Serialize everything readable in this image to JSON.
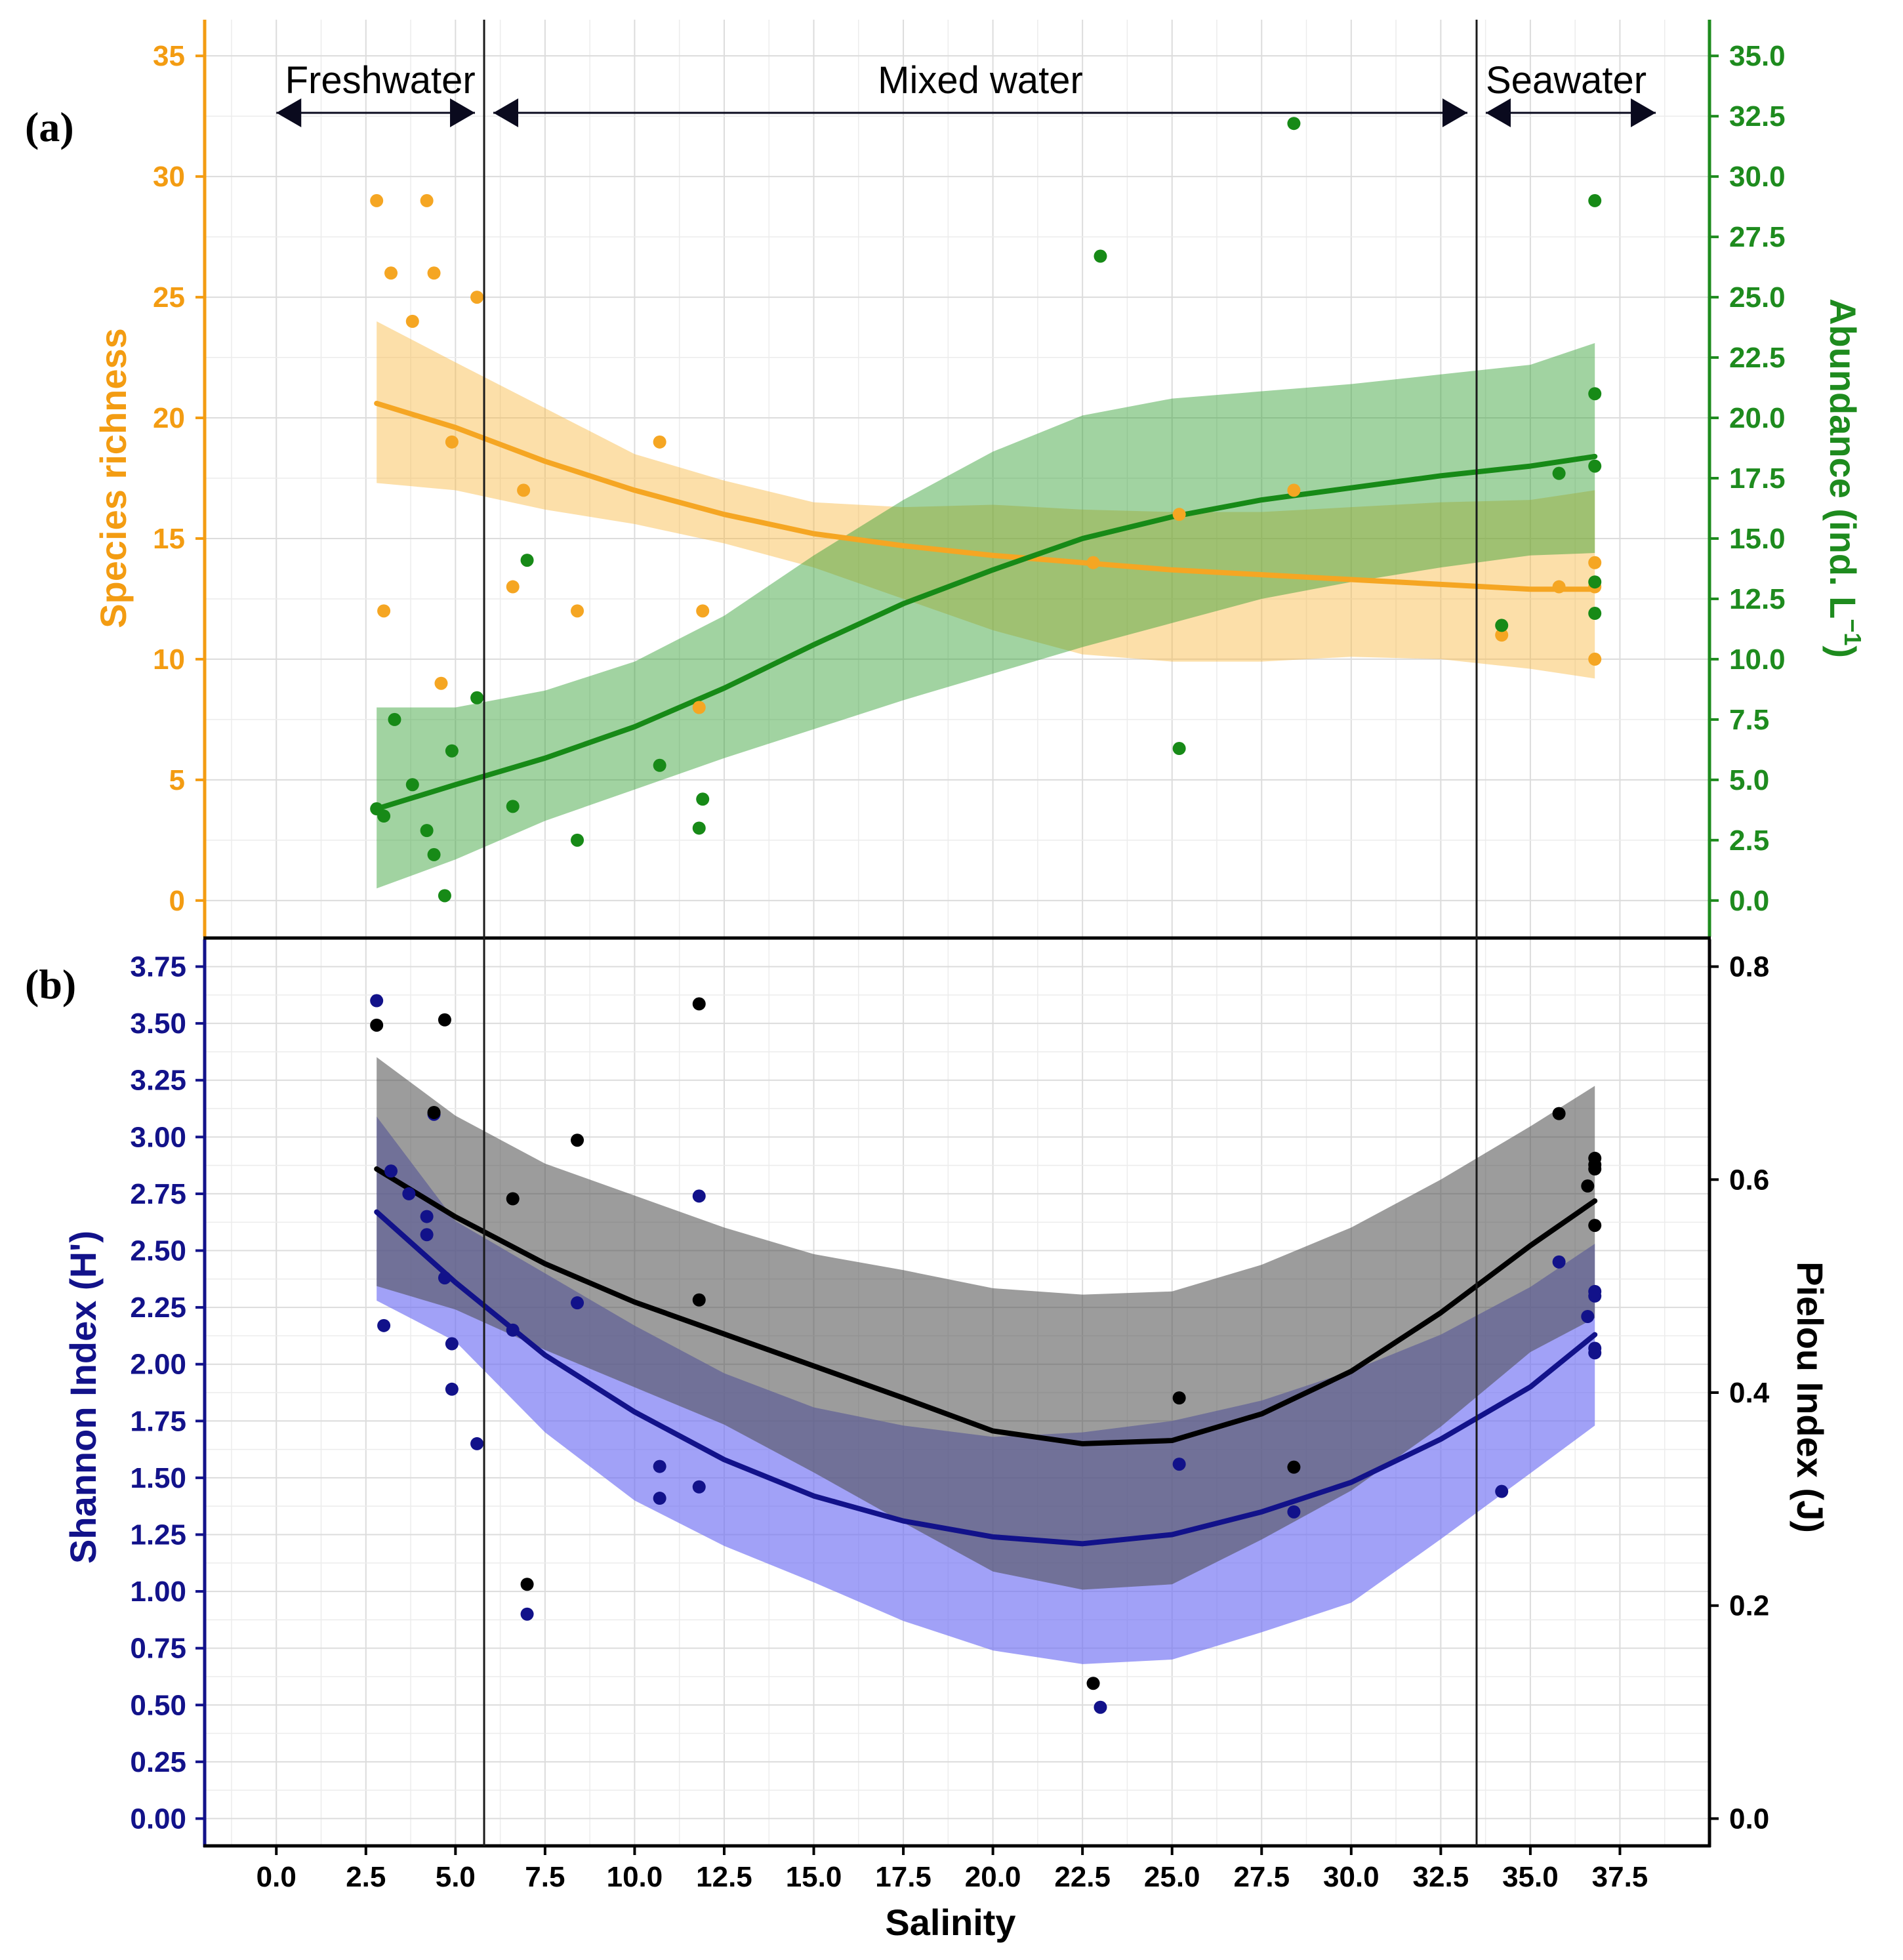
{
  "chart_data": [
    {
      "panel_label": "(a)",
      "type": "scatter",
      "xlim": [
        -2.0,
        40.0
      ],
      "x_ticks": [
        0.0,
        2.5,
        5.0,
        7.5,
        10.0,
        12.5,
        15.0,
        17.5,
        20.0,
        22.5,
        25.0,
        27.5,
        30.0,
        32.5,
        35.0,
        37.5
      ],
      "zone_boundaries": [
        5.8,
        33.5
      ],
      "zones": [
        {
          "label": "Freshwater",
          "from": 0.0,
          "to": 5.8
        },
        {
          "label": "Mixed water",
          "from": 5.8,
          "to": 33.5
        },
        {
          "label": "Seawater",
          "from": 33.5,
          "to": 38.5
        }
      ],
      "y_left": {
        "label": "Species richness",
        "ylim": [
          -1.5,
          36.5
        ],
        "ticks": [
          0,
          5,
          10,
          15,
          20,
          25,
          30,
          35
        ]
      },
      "y_right": {
        "label": "Abundance (ind. L",
        "label_sup": "−1",
        "label_end": ")",
        "ylim": [
          -1.5,
          36.5
        ],
        "ticks": [
          "0.0",
          "2.5",
          "5.0",
          "7.5",
          "10.0",
          "12.5",
          "15.0",
          "17.5",
          "20.0",
          "22.5",
          "25.0",
          "27.5",
          "30.0",
          "32.5",
          "35.0"
        ]
      },
      "series": [
        {
          "axis": "left",
          "color": "#F5A623",
          "points": [
            [
              2.8,
              29
            ],
            [
              3.0,
              12
            ],
            [
              3.2,
              26
            ],
            [
              3.8,
              24
            ],
            [
              4.2,
              29
            ],
            [
              4.4,
              26
            ],
            [
              4.6,
              9
            ],
            [
              4.9,
              19
            ],
            [
              5.6,
              25
            ],
            [
              6.6,
              13
            ],
            [
              6.9,
              17
            ],
            [
              8.4,
              12
            ],
            [
              10.7,
              19
            ],
            [
              11.8,
              8
            ],
            [
              11.9,
              12
            ],
            [
              22.8,
              14
            ],
            [
              25.2,
              16
            ],
            [
              28.4,
              17
            ],
            [
              34.2,
              11
            ],
            [
              35.8,
              13
            ],
            [
              36.8,
              14
            ],
            [
              36.8,
              13
            ],
            [
              36.8,
              10
            ]
          ],
          "fit": [
            [
              2.8,
              20.6
            ],
            [
              5.0,
              19.6
            ],
            [
              7.5,
              18.2
            ],
            [
              10.0,
              17.0
            ],
            [
              12.5,
              16.0
            ],
            [
              15.0,
              15.2
            ],
            [
              17.5,
              14.7
            ],
            [
              20.0,
              14.3
            ],
            [
              22.5,
              14.0
            ],
            [
              25.0,
              13.7
            ],
            [
              27.5,
              13.5
            ],
            [
              30.0,
              13.3
            ],
            [
              32.5,
              13.1
            ],
            [
              35.0,
              12.9
            ],
            [
              36.8,
              12.9
            ]
          ],
          "band": [
            [
              2.8,
              17.3,
              24.0
            ],
            [
              5.0,
              17.0,
              22.3
            ],
            [
              7.5,
              16.2,
              20.4
            ],
            [
              10.0,
              15.6,
              18.5
            ],
            [
              12.5,
              14.8,
              17.4
            ],
            [
              15.0,
              13.8,
              16.5
            ],
            [
              17.5,
              12.5,
              16.3
            ],
            [
              20.0,
              11.2,
              16.4
            ],
            [
              22.5,
              10.2,
              16.2
            ],
            [
              25.0,
              9.9,
              16.1
            ],
            [
              27.5,
              9.9,
              16.1
            ],
            [
              30.0,
              10.1,
              16.3
            ],
            [
              32.5,
              10.0,
              16.5
            ],
            [
              35.0,
              9.6,
              16.6
            ],
            [
              36.8,
              9.2,
              17.0
            ]
          ]
        },
        {
          "axis": "right",
          "color": "#178A17",
          "points": [
            [
              2.8,
              3.8
            ],
            [
              3.0,
              3.5
            ],
            [
              3.3,
              7.5
            ],
            [
              3.8,
              4.8
            ],
            [
              4.2,
              2.9
            ],
            [
              4.4,
              1.9
            ],
            [
              4.7,
              0.2
            ],
            [
              4.9,
              6.2
            ],
            [
              5.6,
              8.4
            ],
            [
              6.6,
              3.9
            ],
            [
              7.0,
              14.1
            ],
            [
              8.4,
              2.5
            ],
            [
              10.7,
              5.6
            ],
            [
              11.8,
              3.0
            ],
            [
              11.9,
              4.2
            ],
            [
              23.0,
              26.7
            ],
            [
              25.2,
              6.3
            ],
            [
              28.4,
              32.2
            ],
            [
              34.2,
              11.4
            ],
            [
              35.8,
              17.7
            ],
            [
              36.8,
              29.0
            ],
            [
              36.8,
              21.0
            ],
            [
              36.8,
              18.0
            ],
            [
              36.8,
              13.2
            ],
            [
              36.8,
              11.9
            ]
          ],
          "fit": [
            [
              2.8,
              3.8
            ],
            [
              5.0,
              4.8
            ],
            [
              7.5,
              5.9
            ],
            [
              10.0,
              7.2
            ],
            [
              12.5,
              8.8
            ],
            [
              15.0,
              10.6
            ],
            [
              17.5,
              12.3
            ],
            [
              20.0,
              13.7
            ],
            [
              22.5,
              15.0
            ],
            [
              25.0,
              15.9
            ],
            [
              27.5,
              16.6
            ],
            [
              30.0,
              17.1
            ],
            [
              32.5,
              17.6
            ],
            [
              35.0,
              18.0
            ],
            [
              36.8,
              18.4
            ]
          ],
          "band": [
            [
              2.8,
              0.5,
              8.0
            ],
            [
              5.0,
              1.7,
              8.0
            ],
            [
              7.5,
              3.3,
              8.7
            ],
            [
              10.0,
              4.6,
              9.9
            ],
            [
              12.5,
              5.9,
              11.8
            ],
            [
              15.0,
              7.1,
              14.3
            ],
            [
              17.5,
              8.3,
              16.6
            ],
            [
              20.0,
              9.4,
              18.6
            ],
            [
              22.5,
              10.5,
              20.1
            ],
            [
              25.0,
              11.5,
              20.8
            ],
            [
              27.5,
              12.5,
              21.1
            ],
            [
              30.0,
              13.2,
              21.4
            ],
            [
              32.5,
              13.8,
              21.8
            ],
            [
              35.0,
              14.3,
              22.2
            ],
            [
              36.8,
              14.4,
              23.1
            ]
          ]
        }
      ]
    },
    {
      "panel_label": "(b)",
      "type": "scatter",
      "xlim": [
        -2.0,
        40.0
      ],
      "xlabel": "Salinity",
      "x_ticks": [
        "0.0",
        "2.5",
        "5.0",
        "7.5",
        "10.0",
        "12.5",
        "15.0",
        "17.5",
        "20.0",
        "22.5",
        "25.0",
        "27.5",
        "30.0",
        "32.5",
        "35.0",
        "37.5"
      ],
      "y_left": {
        "label": "Shannon Index (H')",
        "ylim": [
          -0.12,
          3.87
        ],
        "ticks": [
          "0.00",
          "0.25",
          "0.50",
          "0.75",
          "1.00",
          "1.25",
          "1.50",
          "1.75",
          "2.00",
          "2.25",
          "2.50",
          "2.75",
          "3.00",
          "3.25",
          "3.50",
          "3.75"
        ]
      },
      "y_right": {
        "label": "Pielou Index (J)",
        "ylim": [
          -0.0256,
          0.8256
        ],
        "ticks": [
          "0.0",
          "0.2",
          "0.4",
          "0.6",
          "0.8"
        ]
      },
      "series": [
        {
          "axis": "left",
          "color": "#12128A",
          "points": [
            [
              2.8,
              3.6
            ],
            [
              3.0,
              2.17
            ],
            [
              3.2,
              2.85
            ],
            [
              3.7,
              2.75
            ],
            [
              4.2,
              2.65
            ],
            [
              4.2,
              2.57
            ],
            [
              4.4,
              3.1
            ],
            [
              4.7,
              2.38
            ],
            [
              4.9,
              2.09
            ],
            [
              4.9,
              1.89
            ],
            [
              5.6,
              1.65
            ],
            [
              6.6,
              2.15
            ],
            [
              7.0,
              0.9
            ],
            [
              8.4,
              2.27
            ],
            [
              10.7,
              1.55
            ],
            [
              10.7,
              1.41
            ],
            [
              11.8,
              2.74
            ],
            [
              11.8,
              1.46
            ],
            [
              23.0,
              0.49
            ],
            [
              25.2,
              1.56
            ],
            [
              28.4,
              1.35
            ],
            [
              34.2,
              1.44
            ],
            [
              35.8,
              2.45
            ],
            [
              36.6,
              2.21
            ],
            [
              36.8,
              2.3
            ],
            [
              36.8,
              2.32
            ],
            [
              36.8,
              2.07
            ],
            [
              36.8,
              2.05
            ]
          ],
          "fit": [
            [
              2.8,
              2.67
            ],
            [
              5.0,
              2.36
            ],
            [
              7.5,
              2.04
            ],
            [
              10.0,
              1.79
            ],
            [
              12.5,
              1.58
            ],
            [
              15.0,
              1.42
            ],
            [
              17.5,
              1.31
            ],
            [
              20.0,
              1.24
            ],
            [
              22.5,
              1.21
            ],
            [
              25.0,
              1.25
            ],
            [
              27.5,
              1.35
            ],
            [
              30.0,
              1.48
            ],
            [
              32.5,
              1.67
            ],
            [
              35.0,
              1.9
            ],
            [
              36.8,
              2.13
            ]
          ],
          "band": [
            [
              2.8,
              2.28,
              3.09
            ],
            [
              5.0,
              2.1,
              2.63
            ],
            [
              7.5,
              1.7,
              2.4
            ],
            [
              10.0,
              1.4,
              2.17
            ],
            [
              12.5,
              1.2,
              1.96
            ],
            [
              15.0,
              1.04,
              1.81
            ],
            [
              17.5,
              0.87,
              1.73
            ],
            [
              20.0,
              0.74,
              1.68
            ],
            [
              22.5,
              0.68,
              1.7
            ],
            [
              25.0,
              0.7,
              1.75
            ],
            [
              27.5,
              0.82,
              1.84
            ],
            [
              30.0,
              0.95,
              1.97
            ],
            [
              32.5,
              1.23,
              2.13
            ],
            [
              35.0,
              1.52,
              2.34
            ],
            [
              36.8,
              1.73,
              2.53
            ]
          ]
        },
        {
          "axis": "right",
          "color": "#000000",
          "points": [
            [
              2.8,
              0.745
            ],
            [
              4.4,
              0.663
            ],
            [
              4.7,
              0.75
            ],
            [
              6.6,
              0.582
            ],
            [
              7.0,
              0.22
            ],
            [
              8.4,
              0.637
            ],
            [
              11.8,
              0.765
            ],
            [
              11.8,
              0.487
            ],
            [
              22.8,
              0.127
            ],
            [
              25.2,
              0.395
            ],
            [
              28.4,
              0.33
            ],
            [
              35.8,
              0.662
            ],
            [
              36.6,
              0.594
            ],
            [
              36.8,
              0.62
            ],
            [
              36.8,
              0.614
            ],
            [
              36.8,
              0.61
            ],
            [
              36.8,
              0.557
            ]
          ],
          "fit": [
            [
              2.8,
              0.61
            ],
            [
              5.0,
              0.565
            ],
            [
              7.5,
              0.521
            ],
            [
              10.0,
              0.485
            ],
            [
              12.5,
              0.455
            ],
            [
              15.0,
              0.425
            ],
            [
              17.5,
              0.395
            ],
            [
              20.0,
              0.364
            ],
            [
              22.5,
              0.352
            ],
            [
              25.0,
              0.355
            ],
            [
              27.5,
              0.38
            ],
            [
              30.0,
              0.42
            ],
            [
              32.5,
              0.475
            ],
            [
              35.0,
              0.538
            ],
            [
              36.8,
              0.58
            ]
          ],
          "band": [
            [
              2.8,
              0.5,
              0.715
            ],
            [
              5.0,
              0.478,
              0.66
            ],
            [
              7.5,
              0.44,
              0.615
            ],
            [
              10.0,
              0.405,
              0.585
            ],
            [
              12.5,
              0.37,
              0.555
            ],
            [
              15.0,
              0.325,
              0.53
            ],
            [
              17.5,
              0.278,
              0.515
            ],
            [
              20.0,
              0.232,
              0.498
            ],
            [
              22.5,
              0.215,
              0.492
            ],
            [
              25.0,
              0.22,
              0.495
            ],
            [
              27.5,
              0.262,
              0.52
            ],
            [
              30.0,
              0.308,
              0.555
            ],
            [
              32.5,
              0.368,
              0.6
            ],
            [
              35.0,
              0.438,
              0.65
            ],
            [
              36.8,
              0.47,
              0.688
            ]
          ]
        }
      ]
    }
  ]
}
